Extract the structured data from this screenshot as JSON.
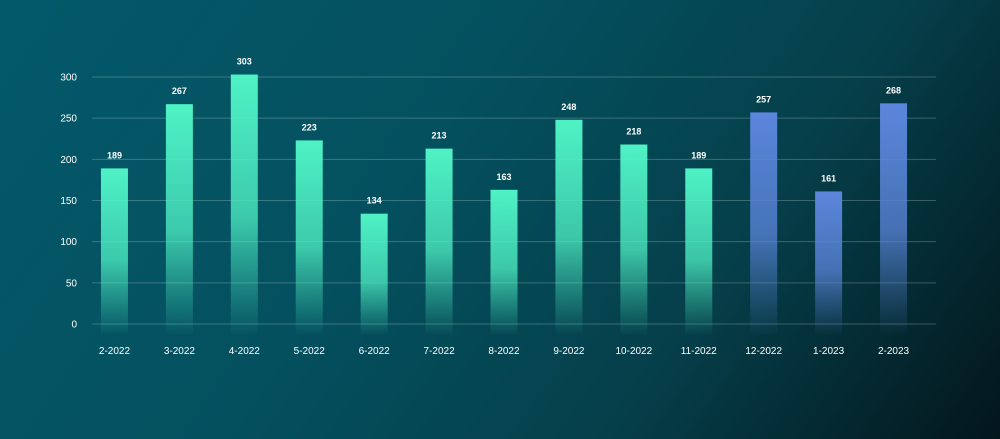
{
  "chart_data": {
    "type": "bar",
    "title": "",
    "xlabel": "",
    "ylabel": "",
    "categories": [
      "2-2022",
      "3-2022",
      "4-2022",
      "5-2022",
      "6-2022",
      "7-2022",
      "8-2022",
      "9-2022",
      "10-2022",
      "11-2022",
      "12-2022",
      "1-2023",
      "2-2023"
    ],
    "values": [
      189,
      267,
      303,
      223,
      134,
      213,
      163,
      248,
      218,
      189,
      257,
      161,
      268
    ],
    "ylim": [
      0,
      300
    ],
    "yticks": [
      0,
      50,
      100,
      150,
      200,
      250,
      300
    ],
    "grid": true,
    "legend": "none",
    "colors": {
      "green_bar": "#4ff2c5",
      "blue_bar": "#5b86dc",
      "text": "#ffffff"
    },
    "bar_colors": [
      "green",
      "green",
      "green",
      "green",
      "green",
      "green",
      "green",
      "green",
      "green",
      "green",
      "blue",
      "blue",
      "blue"
    ]
  }
}
